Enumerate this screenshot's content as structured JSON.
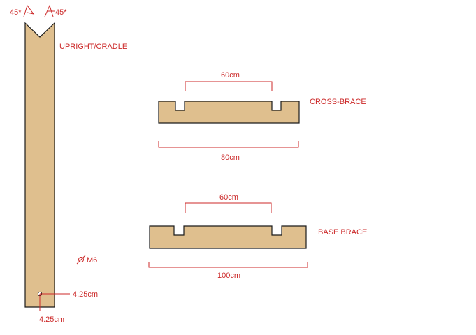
{
  "colors": {
    "wood": "#dfbf8e",
    "outline": "#1a1a1a",
    "annotation": "#cc2a2a"
  },
  "upright": {
    "label": "UPRIGHT/CRADLE",
    "angle_left": "45*",
    "angle_right": "45*",
    "bolt_label": "M6",
    "hole_offset_x": "4.25cm",
    "hole_offset_y": "4.25cm"
  },
  "cross_brace": {
    "label": "CROSS-BRACE",
    "notch_spacing": "60cm",
    "length": "80cm"
  },
  "base_brace": {
    "label": "BASE BRACE",
    "notch_spacing": "60cm",
    "length": "100cm"
  }
}
